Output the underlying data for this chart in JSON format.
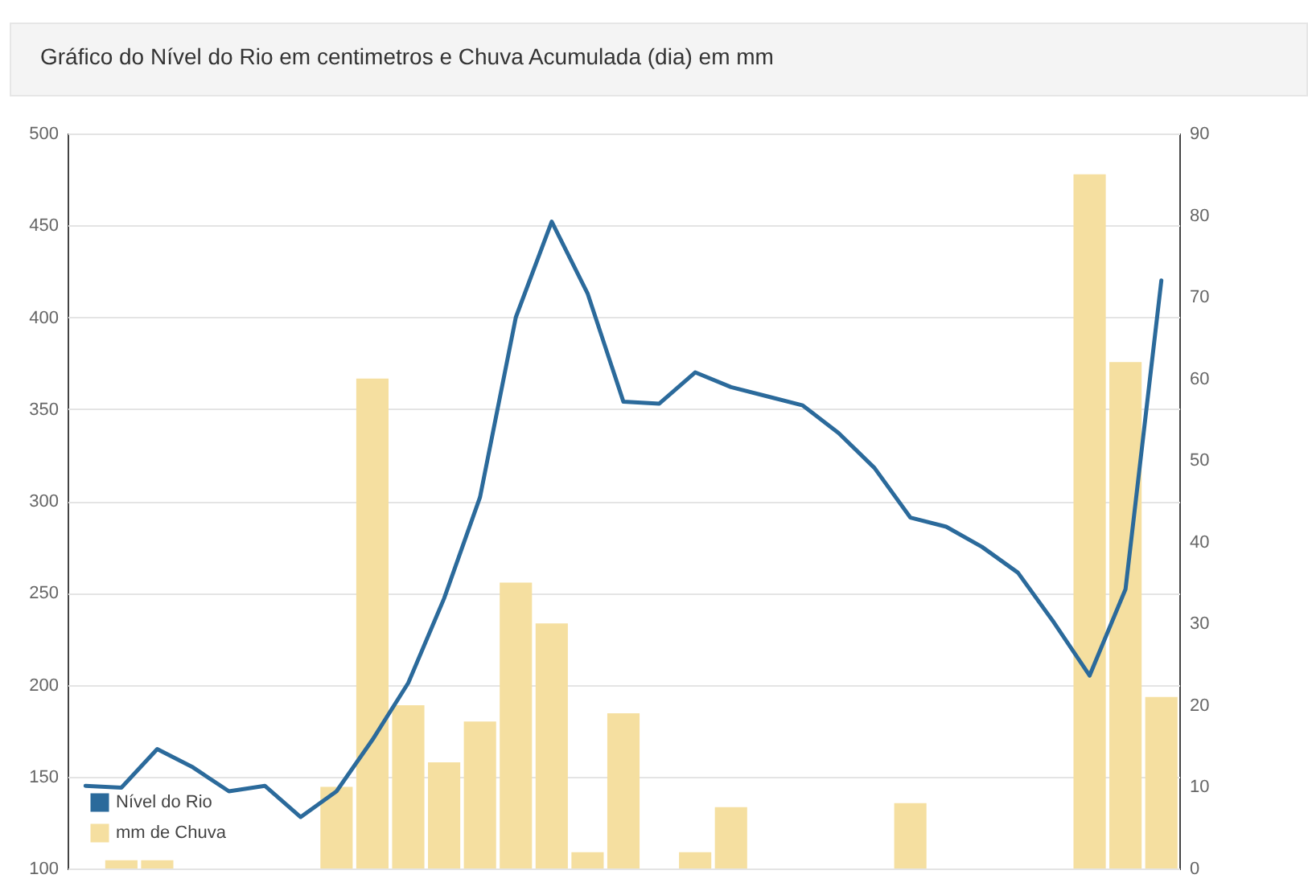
{
  "chart_data": {
    "type": "line",
    "title": "Gráfico do Nível do Rio em centimetros e Chuva Acumulada (dia) em mm",
    "categories": [
      null,
      null,
      null,
      null,
      null,
      null,
      null,
      null,
      null,
      null,
      null,
      null,
      null,
      null,
      null,
      null,
      null,
      null,
      null,
      null,
      null,
      null,
      null,
      null,
      null,
      null,
      null,
      null,
      null,
      null,
      null
    ],
    "tick_labels": "y",
    "ylim": [
      100,
      500
    ],
    "yticks": [
      100,
      150,
      200,
      250,
      300,
      350,
      400,
      450,
      500
    ],
    "y2lim": [
      0,
      90
    ],
    "y2ticks": [
      0,
      10,
      20,
      30,
      40,
      50,
      60,
      70,
      80,
      90
    ],
    "grid": "y",
    "legend": "bottom left",
    "series": [
      {
        "name": "Nível do Rio",
        "color": "#2b6a9b",
        "values": [
          145,
          144,
          165,
          155,
          142,
          145,
          128,
          142,
          170,
          201,
          247,
          302,
          400,
          452,
          413,
          354,
          353,
          370,
          362,
          357,
          352,
          337,
          318,
          291,
          286,
          275,
          261,
          234,
          205,
          252,
          420
        ]
      },
      {
        "name": "mm de Chuva",
        "type": "bar",
        "axis": "y2",
        "color": "#f5dfa0",
        "values": [
          0,
          1,
          1,
          0,
          0,
          0,
          0,
          10,
          60,
          20,
          13,
          18,
          35,
          30,
          2,
          19,
          0,
          2,
          7.5,
          0,
          0,
          0,
          0,
          8,
          0,
          0,
          0,
          0,
          85,
          62,
          21
        ]
      }
    ]
  }
}
